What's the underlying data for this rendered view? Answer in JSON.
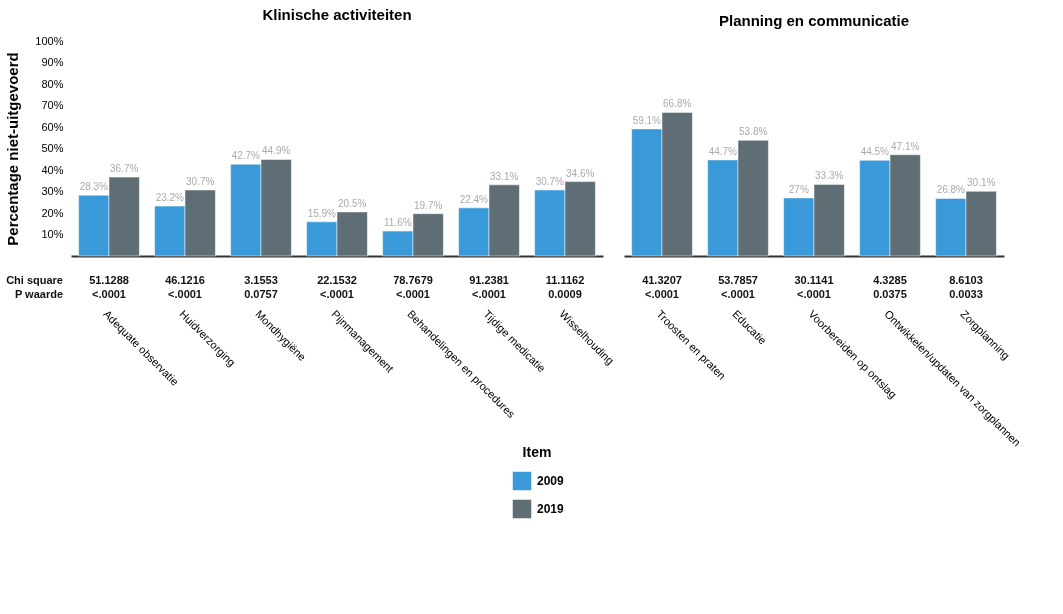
{
  "chart_data": [
    {
      "type": "bar",
      "title": "Klinische activiteiten",
      "ylabel": "Percentage niet-uitgevoerd",
      "categories": [
        "Adequate observatie",
        "Huidverzorging",
        "Mondhygiëne",
        "Pijnmanagement",
        "Behandelingen en procedures",
        "Tijdige medicatie",
        "Wisselhouding"
      ],
      "series": [
        {
          "name": "2009",
          "color": "#3a9ad9",
          "values": [
            28.3,
            23.2,
            42.7,
            15.9,
            11.6,
            22.4,
            30.7
          ],
          "value_labels": [
            "28.3%",
            "23.2%",
            "42.7%",
            "15.9%",
            "11.6%",
            "22.4%",
            "30.7%"
          ]
        },
        {
          "name": "2019",
          "color": "#5f6e75",
          "values": [
            36.7,
            30.7,
            44.9,
            20.5,
            19.7,
            33.1,
            34.6
          ],
          "value_labels": [
            "36.7%",
            "30.7%",
            "44.9%",
            "20.5%",
            "19.7%",
            "33.1%",
            "34.6%"
          ]
        }
      ],
      "ylim": [
        0,
        100
      ],
      "yticks": [
        {
          "value": 10,
          "label": "10%"
        },
        {
          "value": 20,
          "label": "20%"
        },
        {
          "value": 30,
          "label": "30%"
        },
        {
          "value": 40,
          "label": "40%"
        },
        {
          "value": 50,
          "label": "50%"
        },
        {
          "value": 60,
          "label": "60%"
        },
        {
          "value": 70,
          "label": "70%"
        },
        {
          "value": 80,
          "label": "80%"
        },
        {
          "value": 90,
          "label": "90%"
        },
        {
          "value": 100,
          "label": "100%"
        }
      ],
      "grid": false,
      "legend": "bottom",
      "legend_title": "Item",
      "annotations": [
        "Chi square",
        "P waarde",
        "51.1288",
        "<.0001",
        "46.1216",
        "<.0001",
        "3.1553",
        "0.0757",
        "22.1532",
        "<.0001",
        "78.7679",
        "<.0001",
        "91.2381",
        "<.0001",
        "11.1162",
        "0.0009"
      ]
    },
    {
      "type": "bar",
      "title": "Planning en communicatie",
      "categories": [
        "Troosten en praten",
        "Educatie",
        "Voorbereiden op ontslag",
        "Ontwikkelen/updaten van zorgplannen",
        "Zorgplanning"
      ],
      "series": [
        {
          "name": "2009",
          "color": "#3a9ad9",
          "values": [
            59.1,
            44.7,
            27,
            44.5,
            26.8
          ],
          "value_labels": [
            "59.1%",
            "44.7%",
            "27%",
            "44.5%",
            "26.8%"
          ]
        },
        {
          "name": "2019",
          "color": "#5f6e75",
          "values": [
            66.8,
            53.8,
            33.3,
            47.1,
            30.1
          ],
          "value_labels": [
            "66.8%",
            "53.8%",
            "33.3%",
            "47.1%",
            "30.1%"
          ]
        }
      ],
      "ylim": [
        0,
        100
      ],
      "tick_labels": "x",
      "grid": false,
      "annotations": [
        "41.3207",
        "<.0001",
        "53.7857",
        "<.0001",
        "30.1141",
        "<.0001",
        "4.3285",
        "0.0375",
        "8.6103",
        "0.0033"
      ]
    }
  ]
}
